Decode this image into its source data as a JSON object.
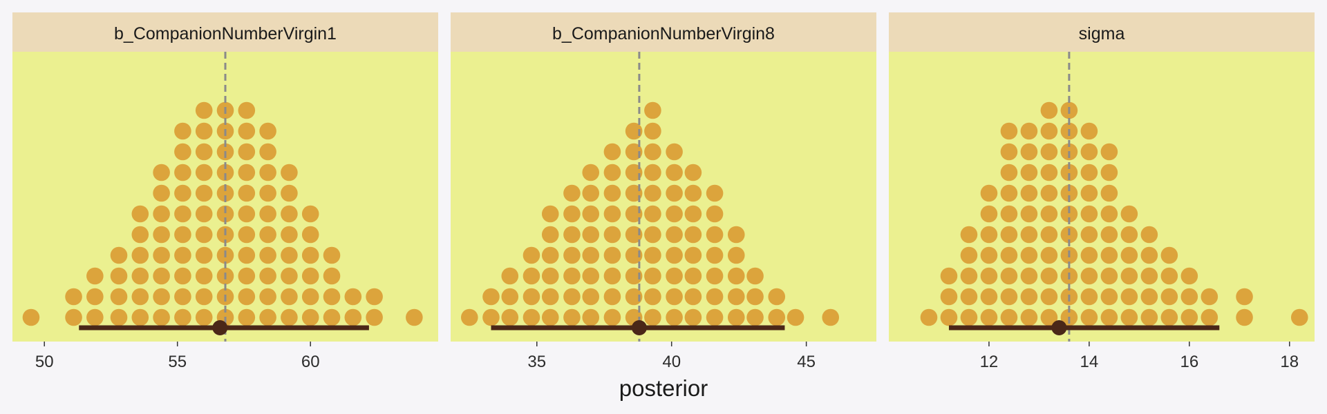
{
  "chart_data": {
    "type": "dotplot",
    "xlabel": "posterior",
    "colors": {
      "page_background": "#f6f5f8",
      "panel_background": "#ebf090",
      "strip_background": "#ecdab8",
      "dot_fill": "#dca43c",
      "interval_line": "#4a2718",
      "point_estimate": "#4a2718",
      "reference_line": "#8a8a8a"
    },
    "facets": [
      {
        "name": "b_CompanionNumberVirgin1",
        "xlim": [
          48.8,
          64.8
        ],
        "ticks": [
          50,
          55,
          60
        ],
        "tick_labels": [
          "50",
          "55",
          "60"
        ],
        "reference_line": 56.8,
        "point_estimate": 56.6,
        "interval": [
          51.3,
          62.2
        ],
        "bin_width": 0.784,
        "bins": [
          {
            "x": 49.5,
            "count": 1
          },
          {
            "x": 51.1,
            "count": 2
          },
          {
            "x": 51.9,
            "count": 3
          },
          {
            "x": 52.8,
            "count": 4
          },
          {
            "x": 53.6,
            "count": 6
          },
          {
            "x": 54.4,
            "count": 8
          },
          {
            "x": 55.2,
            "count": 10
          },
          {
            "x": 56.0,
            "count": 11
          },
          {
            "x": 56.8,
            "count": 11
          },
          {
            "x": 57.6,
            "count": 11
          },
          {
            "x": 58.4,
            "count": 10
          },
          {
            "x": 59.2,
            "count": 8
          },
          {
            "x": 60.0,
            "count": 6
          },
          {
            "x": 60.8,
            "count": 4
          },
          {
            "x": 61.6,
            "count": 2
          },
          {
            "x": 62.4,
            "count": 2
          },
          {
            "x": 63.9,
            "count": 1
          }
        ]
      },
      {
        "name": "b_CompanionNumberVirgin8",
        "xlim": [
          31.8,
          47.6
        ],
        "ticks": [
          35,
          40,
          45
        ],
        "tick_labels": [
          "35",
          "40",
          "45"
        ],
        "reference_line": 38.8,
        "point_estimate": 38.8,
        "interval": [
          33.3,
          44.2
        ],
        "bin_width": 0.763,
        "bins": [
          {
            "x": 32.5,
            "count": 1
          },
          {
            "x": 33.3,
            "count": 2
          },
          {
            "x": 34.0,
            "count": 3
          },
          {
            "x": 34.8,
            "count": 4
          },
          {
            "x": 35.5,
            "count": 6
          },
          {
            "x": 36.3,
            "count": 7
          },
          {
            "x": 37.0,
            "count": 8
          },
          {
            "x": 37.8,
            "count": 9
          },
          {
            "x": 38.6,
            "count": 10
          },
          {
            "x": 39.3,
            "count": 11
          },
          {
            "x": 40.1,
            "count": 9
          },
          {
            "x": 40.8,
            "count": 8
          },
          {
            "x": 41.6,
            "count": 7
          },
          {
            "x": 42.4,
            "count": 5
          },
          {
            "x": 43.1,
            "count": 3
          },
          {
            "x": 43.9,
            "count": 2
          },
          {
            "x": 44.6,
            "count": 1
          },
          {
            "x": 45.9,
            "count": 1
          }
        ]
      },
      {
        "name": "sigma",
        "xlim": [
          10.0,
          18.5
        ],
        "ticks": [
          12,
          14,
          16,
          18
        ],
        "tick_labels": [
          "12",
          "14",
          "16",
          "18"
        ],
        "reference_line": 13.6,
        "point_estimate": 13.4,
        "interval": [
          11.2,
          16.6
        ],
        "bin_width": 0.4,
        "bins": [
          {
            "x": 10.8,
            "count": 1
          },
          {
            "x": 11.2,
            "count": 3
          },
          {
            "x": 11.6,
            "count": 5
          },
          {
            "x": 12.0,
            "count": 7
          },
          {
            "x": 12.4,
            "count": 10
          },
          {
            "x": 12.8,
            "count": 10
          },
          {
            "x": 13.2,
            "count": 11
          },
          {
            "x": 13.6,
            "count": 11
          },
          {
            "x": 14.0,
            "count": 10
          },
          {
            "x": 14.4,
            "count": 9
          },
          {
            "x": 14.8,
            "count": 6
          },
          {
            "x": 15.2,
            "count": 5
          },
          {
            "x": 15.6,
            "count": 4
          },
          {
            "x": 16.0,
            "count": 3
          },
          {
            "x": 16.4,
            "count": 2
          },
          {
            "x": 17.1,
            "count": 2
          },
          {
            "x": 18.2,
            "count": 1
          }
        ]
      }
    ]
  }
}
